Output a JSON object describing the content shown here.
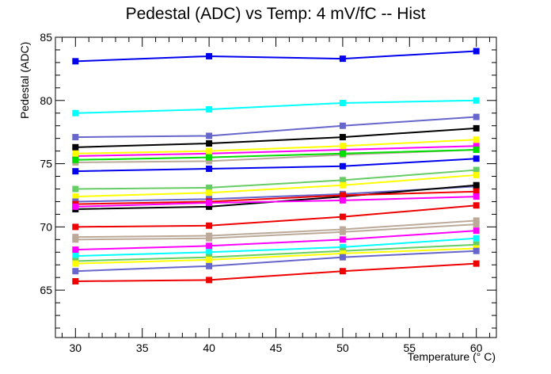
{
  "chart_data": {
    "type": "line",
    "title": "Pedestal (ADC) vs Temp: 4 mV/fC -- Hist",
    "xlabel": "Temperature (° C)",
    "ylabel": "Pedestal (ADC)",
    "xlim": [
      28.5,
      61.5
    ],
    "ylim": [
      61.25,
      85
    ],
    "xticks": [
      30,
      35,
      40,
      45,
      50,
      55,
      60
    ],
    "yticks": [
      65,
      70,
      75,
      80,
      85
    ],
    "grid": false,
    "legend": "none",
    "x": [
      30,
      40,
      50,
      60
    ],
    "series": [
      {
        "color": "#0000ee",
        "values": [
          83.1,
          83.5,
          83.3,
          83.9
        ]
      },
      {
        "color": "#00ffff",
        "values": [
          79.0,
          79.3,
          79.8,
          80.0
        ]
      },
      {
        "color": "#6666cc",
        "values": [
          77.1,
          77.2,
          78.0,
          78.7
        ]
      },
      {
        "color": "#000000",
        "values": [
          76.3,
          76.6,
          77.1,
          77.8
        ]
      },
      {
        "color": "#ff00ff",
        "values": [
          75.6,
          75.8,
          76.1,
          76.4
        ]
      },
      {
        "color": "#ffff00",
        "values": [
          75.8,
          76.0,
          76.4,
          76.9
        ]
      },
      {
        "color": "#bbaa99",
        "values": [
          75.1,
          75.2,
          75.7,
          76.1
        ]
      },
      {
        "color": "#00dd00",
        "values": [
          75.3,
          75.5,
          75.8,
          76.1
        ]
      },
      {
        "color": "#0000ee",
        "values": [
          74.4,
          74.6,
          74.8,
          75.4
        ]
      },
      {
        "color": "#66cc66",
        "values": [
          73.0,
          73.1,
          73.7,
          74.5
        ]
      },
      {
        "color": "#ffff00",
        "values": [
          72.4,
          72.7,
          73.3,
          74.1
        ]
      },
      {
        "color": "#6666cc",
        "values": [
          72.0,
          72.2,
          72.6,
          73.2
        ]
      },
      {
        "color": "#000000",
        "values": [
          71.4,
          71.6,
          72.4,
          73.3
        ]
      },
      {
        "color": "#ee0000",
        "values": [
          71.8,
          72.0,
          72.5,
          72.8
        ]
      },
      {
        "color": "#ff00ff",
        "values": [
          71.6,
          71.9,
          72.1,
          72.4
        ]
      },
      {
        "color": "#ee0000",
        "values": [
          70.0,
          70.1,
          70.8,
          71.7
        ]
      },
      {
        "color": "#bbaa99",
        "values": [
          69.2,
          69.3,
          69.8,
          70.5
        ]
      },
      {
        "color": "#bbaa99",
        "values": [
          69.0,
          69.1,
          69.6,
          70.2
        ]
      },
      {
        "color": "#ff00ff",
        "values": [
          68.2,
          68.5,
          69.0,
          69.7
        ]
      },
      {
        "color": "#00ffff",
        "values": [
          67.7,
          68.0,
          68.4,
          69.1
        ]
      },
      {
        "color": "#66cc66",
        "values": [
          67.3,
          67.6,
          68.1,
          68.6
        ]
      },
      {
        "color": "#ffff00",
        "values": [
          67.1,
          67.4,
          67.9,
          68.3
        ]
      },
      {
        "color": "#6666cc",
        "values": [
          66.5,
          66.9,
          67.6,
          68.1
        ]
      },
      {
        "color": "#ee0000",
        "values": [
          65.7,
          65.8,
          66.5,
          67.1
        ]
      }
    ]
  }
}
